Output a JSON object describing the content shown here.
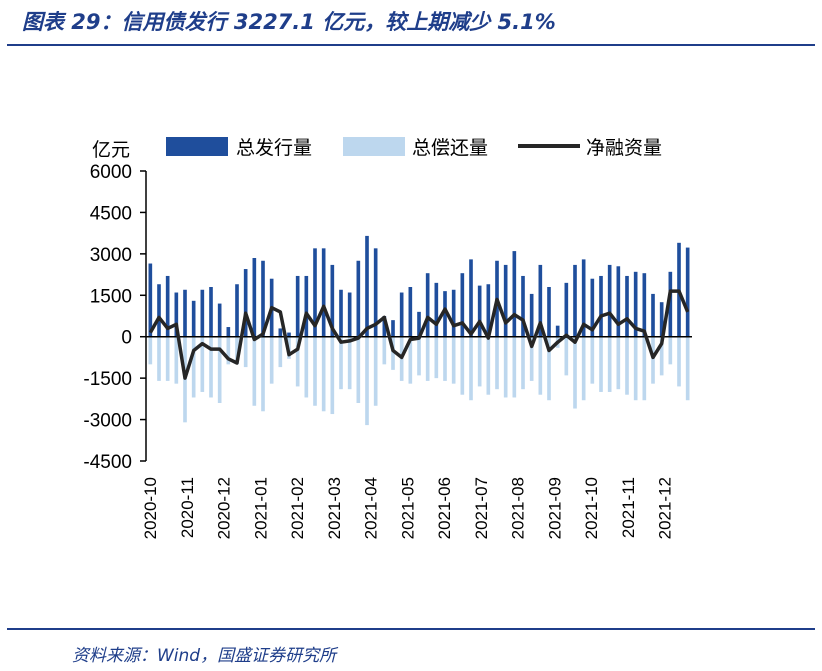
{
  "header": {
    "title": "图表 29：信用债发行 3227.1 亿元，较上期减少 5.1%"
  },
  "footer": {
    "source": "资料来源：Wind，国盛证券研究所"
  },
  "chart_data": {
    "type": "bar",
    "unit_label": "亿元",
    "ylim": [
      -4500,
      6000
    ],
    "yticks": [
      6000,
      4500,
      3000,
      1500,
      0,
      -1500,
      -3000,
      -4500
    ],
    "x_labels": [
      "2020-10",
      "2020-11",
      "2020-12",
      "2021-01",
      "2021-02",
      "2021-03",
      "2021-04",
      "2021-05",
      "2021-06",
      "2021-07",
      "2021-08",
      "2021-09",
      "2021-10",
      "2021-11",
      "2021-12"
    ],
    "legend_position": "top",
    "colors": {
      "issuance": "#1f4e9c",
      "repayment": "#bdd7ee",
      "net": "#262626"
    },
    "series": [
      {
        "name": "总发行量",
        "kind": "bar",
        "values": [
          2650,
          1900,
          2200,
          1600,
          1700,
          1300,
          1700,
          1800,
          1200,
          350,
          1900,
          2450,
          2850,
          2750,
          2100,
          300,
          150,
          2200,
          2200,
          3200,
          3200,
          2600,
          1700,
          1600,
          2750,
          3650,
          3200,
          750,
          600,
          1600,
          1800,
          900,
          2300,
          1950,
          1650,
          1700,
          2300,
          2800,
          1850,
          1900,
          2750,
          2600,
          3100,
          2200,
          1550,
          2600,
          1800,
          400,
          1950,
          2600,
          2800,
          2100,
          2200,
          2600,
          2550,
          2200,
          2350,
          2300,
          1550,
          1250,
          2350,
          3400,
          3227.1
        ]
      },
      {
        "name": "总偿还量",
        "kind": "bar",
        "values": [
          -1000,
          -1600,
          -1600,
          -1700,
          -3100,
          -2200,
          -2000,
          -2200,
          -2400,
          -1000,
          -1000,
          -1100,
          -2500,
          -2700,
          -1700,
          -1100,
          -800,
          -1800,
          -2200,
          -2500,
          -2700,
          -2800,
          -1900,
          -1900,
          -2400,
          -3200,
          -2500,
          -1000,
          -1200,
          -1600,
          -1700,
          -1400,
          -1600,
          -1500,
          -1600,
          -1700,
          -2100,
          -2300,
          -1800,
          -2100,
          -1900,
          -2200,
          -2200,
          -1900,
          -1600,
          -2100,
          -2300,
          -400,
          -1400,
          -2600,
          -2300,
          -1700,
          -2000,
          -2000,
          -1900,
          -2100,
          -2300,
          -2300,
          -1700,
          -1400,
          -1000,
          -1800,
          -2300
        ]
      },
      {
        "name": "净融资量",
        "kind": "line",
        "values": [
          150,
          700,
          300,
          450,
          -1500,
          -500,
          -250,
          -450,
          -450,
          -800,
          -950,
          850,
          -100,
          100,
          1050,
          900,
          -650,
          -450,
          850,
          400,
          1100,
          300,
          -200,
          -150,
          -50,
          300,
          450,
          700,
          -500,
          -750,
          -100,
          -50,
          700,
          450,
          1000,
          400,
          500,
          100,
          550,
          -50,
          1350,
          500,
          800,
          600,
          -350,
          500,
          -500,
          -200,
          50,
          -200,
          450,
          250,
          750,
          850,
          450,
          650,
          300,
          200,
          -750,
          -250,
          1650,
          1650,
          900
        ]
      }
    ]
  }
}
